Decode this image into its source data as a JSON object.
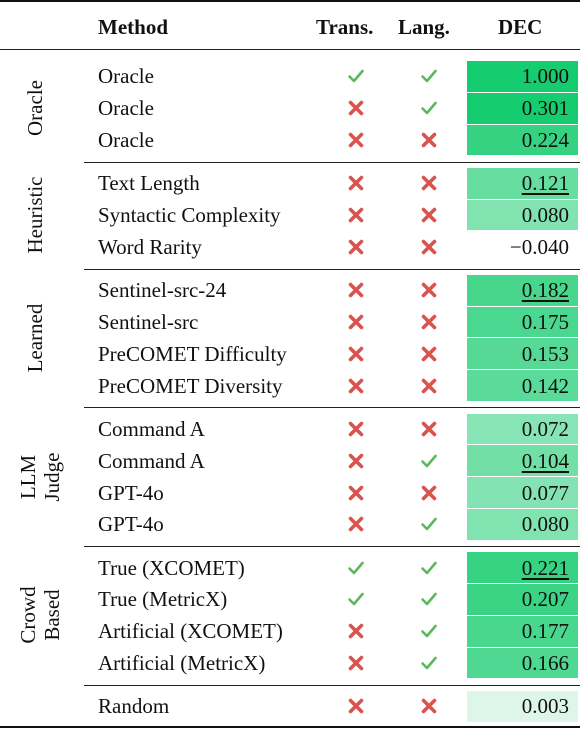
{
  "header": {
    "method": "Method",
    "trans": "Trans.",
    "lang": "Lang.",
    "dec": "DEC"
  },
  "colors": {
    "check": "#5cb85c",
    "cross": "#d9534f",
    "dec_scale": [
      "#f4fbf7",
      "#15cc6e"
    ]
  },
  "groups": [
    {
      "label": "Oracle",
      "label_lines": [
        "Oracle"
      ],
      "rows": [
        {
          "method": "Oracle",
          "trans": true,
          "lang": true,
          "dec": "1.000",
          "underline": false
        },
        {
          "method": "Oracle",
          "trans": false,
          "lang": true,
          "dec": "0.301",
          "underline": false
        },
        {
          "method": "Oracle",
          "trans": false,
          "lang": false,
          "dec": "0.224",
          "underline": false
        }
      ]
    },
    {
      "label": "Heuristic",
      "label_lines": [
        "Heuristic"
      ],
      "rows": [
        {
          "method": "Text Length",
          "trans": false,
          "lang": false,
          "dec": "0.121",
          "underline": true
        },
        {
          "method": "Syntactic Complexity",
          "trans": false,
          "lang": false,
          "dec": "0.080",
          "underline": false
        },
        {
          "method": "Word Rarity",
          "trans": false,
          "lang": false,
          "dec": "−0.040",
          "underline": false
        }
      ]
    },
    {
      "label": "Learned",
      "label_lines": [
        "Learned"
      ],
      "rows": [
        {
          "method": "Sentinel-src-24",
          "trans": false,
          "lang": false,
          "dec": "0.182",
          "underline": true
        },
        {
          "method": "Sentinel-src",
          "trans": false,
          "lang": false,
          "dec": "0.175",
          "underline": false
        },
        {
          "method": "PreCOMET Difficulty",
          "trans": false,
          "lang": false,
          "dec": "0.153",
          "underline": false
        },
        {
          "method": "PreCOMET Diversity",
          "trans": false,
          "lang": false,
          "dec": "0.142",
          "underline": false
        }
      ]
    },
    {
      "label": "LLM Judge",
      "label_lines": [
        "LLM",
        "Judge"
      ],
      "rows": [
        {
          "method": "Command A",
          "trans": false,
          "lang": false,
          "dec": "0.072",
          "underline": false
        },
        {
          "method": "Command A",
          "trans": false,
          "lang": true,
          "dec": "0.104",
          "underline": true
        },
        {
          "method": "GPT-4o",
          "trans": false,
          "lang": false,
          "dec": "0.077",
          "underline": false
        },
        {
          "method": "GPT-4o",
          "trans": false,
          "lang": true,
          "dec": "0.080",
          "underline": false
        }
      ]
    },
    {
      "label": "Crowd Based",
      "label_lines": [
        "Crowd",
        "Based"
      ],
      "rows": [
        {
          "method": "True (XCOMET)",
          "trans": true,
          "lang": true,
          "dec": "0.221",
          "underline": true
        },
        {
          "method": "True (MetricX)",
          "trans": true,
          "lang": true,
          "dec": "0.207",
          "underline": false
        },
        {
          "method": "Artificial (XCOMET)",
          "trans": false,
          "lang": true,
          "dec": "0.177",
          "underline": false
        },
        {
          "method": "Artificial (MetricX)",
          "trans": false,
          "lang": true,
          "dec": "0.166",
          "underline": false
        }
      ]
    },
    {
      "label": "",
      "label_lines": [],
      "rows": [
        {
          "method": "Random",
          "trans": false,
          "lang": false,
          "dec": "0.003",
          "underline": false
        }
      ]
    }
  ]
}
